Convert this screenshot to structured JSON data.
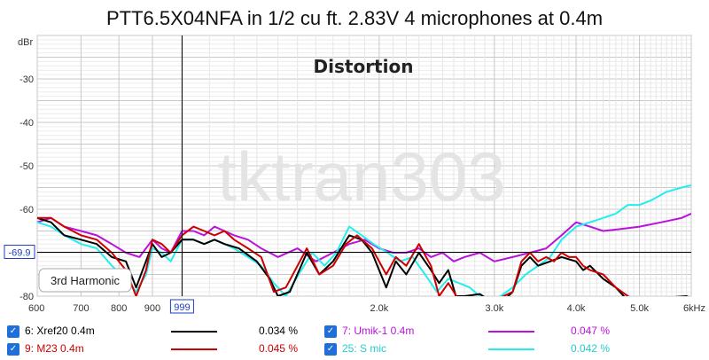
{
  "chart_data": {
    "type": "line",
    "title": "PTT6.5X04NFA in 1/2 cu ft. 2.83V 4 microphones at 0.4m",
    "overlay_label": "Distortion",
    "watermark": "tktran303",
    "ylabel": "dBr",
    "y_ticks": [
      -30,
      -40,
      -50,
      -60,
      -80
    ],
    "ylim": [
      -80,
      -20
    ],
    "x_scale": "log",
    "xlim": [
      600,
      6000
    ],
    "x_ticks": [
      600,
      700,
      800,
      900,
      999,
      2000,
      3000,
      4000,
      5000,
      6000
    ],
    "x_tick_labels": [
      "600",
      "700",
      "800",
      "900",
      "999",
      "2.0k",
      "3.0k",
      "4.0k",
      "5.0k",
      "6kHz"
    ],
    "cursor": {
      "x": 999,
      "y": -69.9,
      "x_label": "999",
      "y_label": "-69.9"
    },
    "selector_label": "3rd Harmonic",
    "colors": {
      "Xref20 0.4m": "#000000",
      "M23 0.4m": "#cc0000",
      "Umik-1 0.4m": "#bb11dd",
      "S mic": "#22eeee"
    },
    "series": [
      {
        "name": "Xref20 0.4m",
        "color": "#000000",
        "points": [
          [
            600,
            -62
          ],
          [
            630,
            -63
          ],
          [
            660,
            -66
          ],
          [
            700,
            -67
          ],
          [
            740,
            -68
          ],
          [
            780,
            -71
          ],
          [
            820,
            -72
          ],
          [
            850,
            -78
          ],
          [
            900,
            -68
          ],
          [
            930,
            -71
          ],
          [
            960,
            -70
          ],
          [
            999,
            -67
          ],
          [
            1040,
            -67
          ],
          [
            1080,
            -68
          ],
          [
            1120,
            -67
          ],
          [
            1160,
            -68
          ],
          [
            1220,
            -69
          ],
          [
            1300,
            -72
          ],
          [
            1360,
            -76
          ],
          [
            1400,
            -80
          ],
          [
            1460,
            -79
          ],
          [
            1550,
            -70
          ],
          [
            1620,
            -75
          ],
          [
            1700,
            -72
          ],
          [
            1800,
            -66
          ],
          [
            1880,
            -67
          ],
          [
            1950,
            -70
          ],
          [
            2050,
            -78
          ],
          [
            2120,
            -72
          ],
          [
            2200,
            -75
          ],
          [
            2300,
            -70
          ],
          [
            2400,
            -74
          ],
          [
            2470,
            -77
          ],
          [
            2550,
            -74
          ],
          [
            2620,
            -80
          ],
          [
            2700,
            -80
          ],
          [
            2850,
            -79.5
          ],
          [
            2950,
            -81
          ],
          [
            3100,
            -81
          ],
          [
            3200,
            -79
          ],
          [
            3300,
            -73
          ],
          [
            3400,
            -71
          ],
          [
            3500,
            -73
          ],
          [
            3650,
            -72
          ],
          [
            3800,
            -71
          ],
          [
            4000,
            -72
          ],
          [
            4100,
            -74
          ],
          [
            4200,
            -73
          ],
          [
            4400,
            -76
          ],
          [
            4600,
            -78
          ],
          [
            4800,
            -81
          ],
          [
            5900,
            -80
          ],
          [
            6000,
            -80.5
          ]
        ]
      },
      {
        "name": "M23 0.4m",
        "color": "#cc0000",
        "points": [
          [
            600,
            -62
          ],
          [
            630,
            -62
          ],
          [
            660,
            -64
          ],
          [
            700,
            -66
          ],
          [
            740,
            -67
          ],
          [
            780,
            -70
          ],
          [
            820,
            -74
          ],
          [
            850,
            -80
          ],
          [
            880,
            -74
          ],
          [
            900,
            -67
          ],
          [
            930,
            -68
          ],
          [
            960,
            -70
          ],
          [
            999,
            -66
          ],
          [
            1040,
            -64
          ],
          [
            1080,
            -65
          ],
          [
            1120,
            -66
          ],
          [
            1160,
            -65
          ],
          [
            1200,
            -67
          ],
          [
            1260,
            -69
          ],
          [
            1320,
            -71
          ],
          [
            1380,
            -79
          ],
          [
            1440,
            -78
          ],
          [
            1550,
            -69
          ],
          [
            1620,
            -75
          ],
          [
            1700,
            -73
          ],
          [
            1780,
            -68
          ],
          [
            1850,
            -66
          ],
          [
            1950,
            -69
          ],
          [
            2050,
            -75
          ],
          [
            2120,
            -71
          ],
          [
            2200,
            -73
          ],
          [
            2300,
            -68
          ],
          [
            2400,
            -73
          ],
          [
            2470,
            -80
          ],
          [
            2550,
            -77
          ],
          [
            2650,
            -81
          ],
          [
            3000,
            -81
          ],
          [
            3200,
            -79
          ],
          [
            3300,
            -72
          ],
          [
            3400,
            -70
          ],
          [
            3500,
            -72
          ],
          [
            3600,
            -71
          ],
          [
            3700,
            -72
          ],
          [
            3800,
            -70
          ],
          [
            3900,
            -71
          ],
          [
            4000,
            -71
          ],
          [
            4100,
            -73
          ],
          [
            4200,
            -74
          ],
          [
            4400,
            -75
          ],
          [
            4600,
            -78
          ],
          [
            4800,
            -80
          ],
          [
            4900,
            -81
          ]
        ]
      },
      {
        "name": "Umik-1 0.4m",
        "color": "#bb11dd",
        "points": [
          [
            600,
            -63
          ],
          [
            630,
            -62
          ],
          [
            660,
            -64
          ],
          [
            700,
            -65
          ],
          [
            740,
            -66
          ],
          [
            780,
            -68
          ],
          [
            820,
            -70
          ],
          [
            860,
            -71
          ],
          [
            900,
            -67
          ],
          [
            930,
            -69
          ],
          [
            960,
            -70
          ],
          [
            999,
            -65
          ],
          [
            1040,
            -65
          ],
          [
            1080,
            -66
          ],
          [
            1120,
            -64
          ],
          [
            1160,
            -65
          ],
          [
            1200,
            -66
          ],
          [
            1260,
            -67
          ],
          [
            1320,
            -69
          ],
          [
            1400,
            -71
          ],
          [
            1500,
            -69
          ],
          [
            1600,
            -72
          ],
          [
            1700,
            -70
          ],
          [
            1800,
            -68
          ],
          [
            1900,
            -67
          ],
          [
            2000,
            -69
          ],
          [
            2100,
            -70
          ],
          [
            2200,
            -70
          ],
          [
            2300,
            -69
          ],
          [
            2400,
            -71
          ],
          [
            2500,
            -70
          ],
          [
            2600,
            -72
          ],
          [
            2700,
            -71
          ],
          [
            2850,
            -70
          ],
          [
            3000,
            -72
          ],
          [
            3200,
            -71
          ],
          [
            3400,
            -70
          ],
          [
            3600,
            -69
          ],
          [
            3800,
            -66
          ],
          [
            4000,
            -63
          ],
          [
            4200,
            -64
          ],
          [
            4400,
            -65
          ],
          [
            4700,
            -64.5
          ],
          [
            5000,
            -64
          ],
          [
            5400,
            -63
          ],
          [
            5800,
            -62
          ],
          [
            6000,
            -61
          ]
        ]
      },
      {
        "name": "S mic",
        "color": "#22eeee",
        "points": [
          [
            600,
            -63
          ],
          [
            630,
            -64
          ],
          [
            660,
            -66
          ],
          [
            700,
            -68
          ],
          [
            740,
            -69
          ],
          [
            780,
            -73
          ],
          [
            820,
            -76
          ],
          [
            850,
            -79
          ],
          [
            880,
            -75
          ],
          [
            900,
            -69
          ],
          [
            930,
            -70
          ],
          [
            960,
            -72
          ],
          [
            999,
            -67
          ],
          [
            1040,
            -67
          ],
          [
            1080,
            -68
          ],
          [
            1120,
            -67
          ],
          [
            1160,
            -68
          ],
          [
            1200,
            -69
          ],
          [
            1260,
            -71
          ],
          [
            1320,
            -73
          ],
          [
            1380,
            -77
          ],
          [
            1440,
            -80
          ],
          [
            1520,
            -74
          ],
          [
            1580,
            -70
          ],
          [
            1650,
            -73
          ],
          [
            1720,
            -70
          ],
          [
            1800,
            -64
          ],
          [
            1880,
            -66
          ],
          [
            1960,
            -68
          ],
          [
            2060,
            -70
          ],
          [
            2150,
            -72
          ],
          [
            2250,
            -71
          ],
          [
            2350,
            -75
          ],
          [
            2450,
            -79
          ],
          [
            2550,
            -76
          ],
          [
            2650,
            -77
          ],
          [
            2750,
            -78
          ],
          [
            2850,
            -80
          ],
          [
            3000,
            -81
          ],
          [
            3200,
            -78
          ],
          [
            3350,
            -75
          ],
          [
            3500,
            -73
          ],
          [
            3650,
            -71
          ],
          [
            3800,
            -67
          ],
          [
            4000,
            -64
          ],
          [
            4200,
            -63
          ],
          [
            4400,
            -62
          ],
          [
            4600,
            -61
          ],
          [
            4800,
            -59
          ],
          [
            5000,
            -59
          ],
          [
            5200,
            -58
          ],
          [
            5500,
            -56
          ],
          [
            5800,
            -55
          ],
          [
            6000,
            -54.5
          ]
        ]
      }
    ]
  },
  "legend": [
    {
      "label": "6: Xref20 0.4m",
      "value": "0.034 %",
      "color": "#000000",
      "label_color": "#000000",
      "value_color": "#000000"
    },
    {
      "label": "9: M23 0.4m",
      "value": "0.045 %",
      "color": "#cc0000",
      "label_color": "#cc0000",
      "value_color": "#cc0000"
    },
    {
      "label": "7: Umik-1 0.4m",
      "value": "0.047 %",
      "color": "#bb11dd",
      "label_color": "#bb11dd",
      "value_color": "#bb11dd"
    },
    {
      "label": "25: S mic",
      "value": "0.042 %",
      "color": "#22eeee",
      "label_color": "#22cccc",
      "value_color": "#22cccc"
    }
  ]
}
